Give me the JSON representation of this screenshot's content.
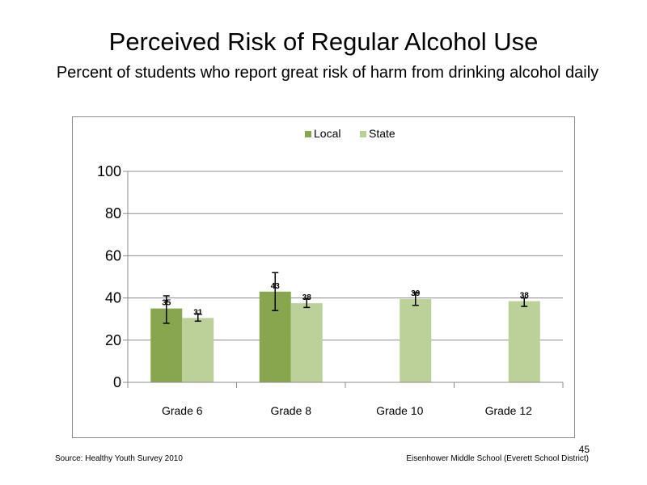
{
  "slide": {
    "title": "Perceived  Risk of Regular  Alcohol  Use",
    "subtitle": "Percent of students  who report great risk of harm  from drinking  alcohol daily",
    "source": "Source: Healthy  Youth Survey 2010",
    "school": "Eisenhower Middle  School  (Everett School District)",
    "page_number": "45"
  },
  "chart_data": {
    "type": "bar",
    "categories": [
      "Grade 6",
      "Grade 8",
      "Grade 10",
      "Grade 12"
    ],
    "series": [
      {
        "name": "Local",
        "color": "#87a64e",
        "values": [
          35,
          43,
          null,
          null
        ],
        "labels": [
          "35",
          "43",
          "",
          ""
        ],
        "error_low": [
          28,
          34,
          null,
          null
        ],
        "error_high": [
          41,
          52,
          null,
          null
        ]
      },
      {
        "name": "State",
        "color": "#bcd19a",
        "values": [
          30.5,
          37.5,
          39.5,
          38.5
        ],
        "labels": [
          "31",
          "38",
          "39",
          "38"
        ],
        "error_low": [
          29,
          35.5,
          36.5,
          36
        ],
        "error_high": [
          32.5,
          39.5,
          42.5,
          40
        ]
      }
    ],
    "yticks": [
      "0",
      "20",
      "40",
      "60",
      "80",
      "100"
    ],
    "ylim": [
      0,
      100
    ],
    "grid": true,
    "legend_position": "top-center"
  }
}
